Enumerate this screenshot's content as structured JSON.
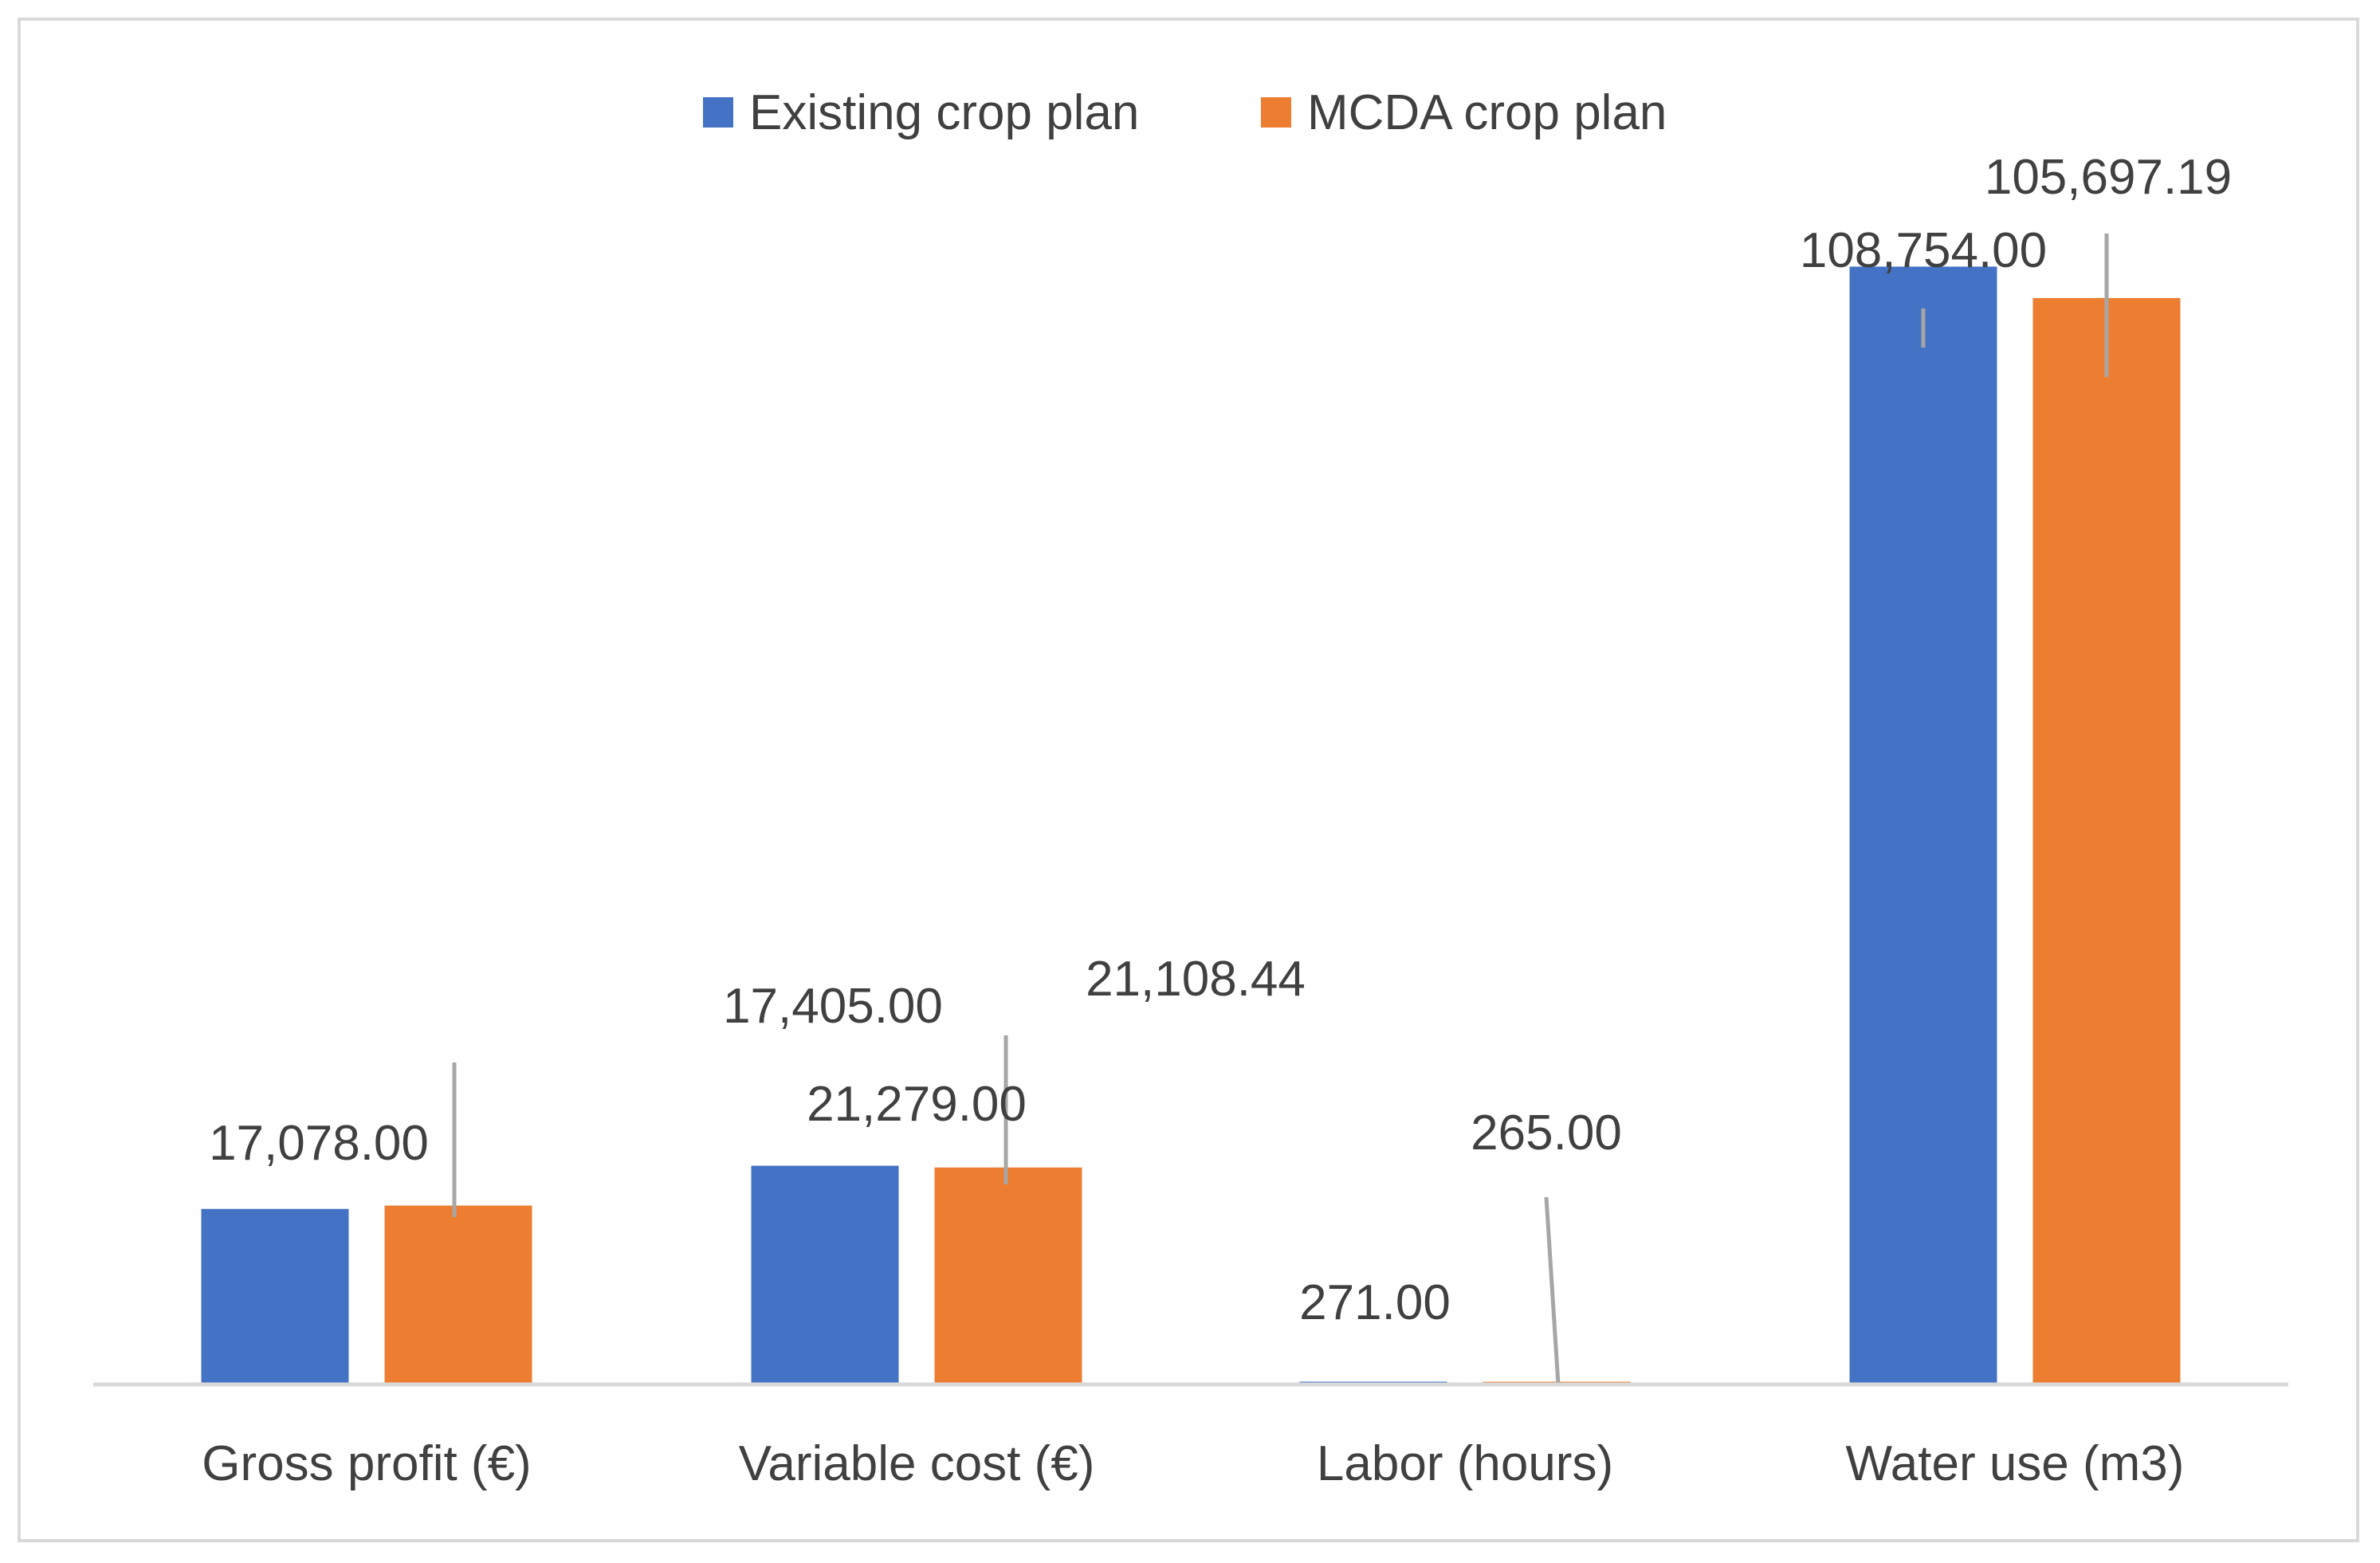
{
  "chart_data": {
    "type": "bar",
    "categories": [
      "Gross profit (€)",
      "Variable cost (€)",
      "Labor (hours)",
      "Water use (m3)"
    ],
    "series": [
      {
        "name": "Existing crop plan",
        "color": "#4472c4",
        "values": [
          17078.0,
          21279.0,
          271.0,
          108754.0
        ],
        "labels": [
          "17,078.00",
          "21,279.00",
          "271.00",
          "108,754.00"
        ]
      },
      {
        "name": "MCDA crop plan",
        "color": "#ed7d31",
        "values": [
          17405.0,
          21108.44,
          265.0,
          105697.19
        ],
        "labels": [
          "17,405.00",
          "21,108.44",
          "265.00",
          "105,697.19"
        ]
      }
    ],
    "title": "",
    "xlabel": "",
    "ylabel": "",
    "ylim": [
      0,
      125000
    ],
    "legend": "top-center",
    "grid": false,
    "axis_color": "#d9d9d9",
    "leader_color": "#a6a6a6"
  }
}
